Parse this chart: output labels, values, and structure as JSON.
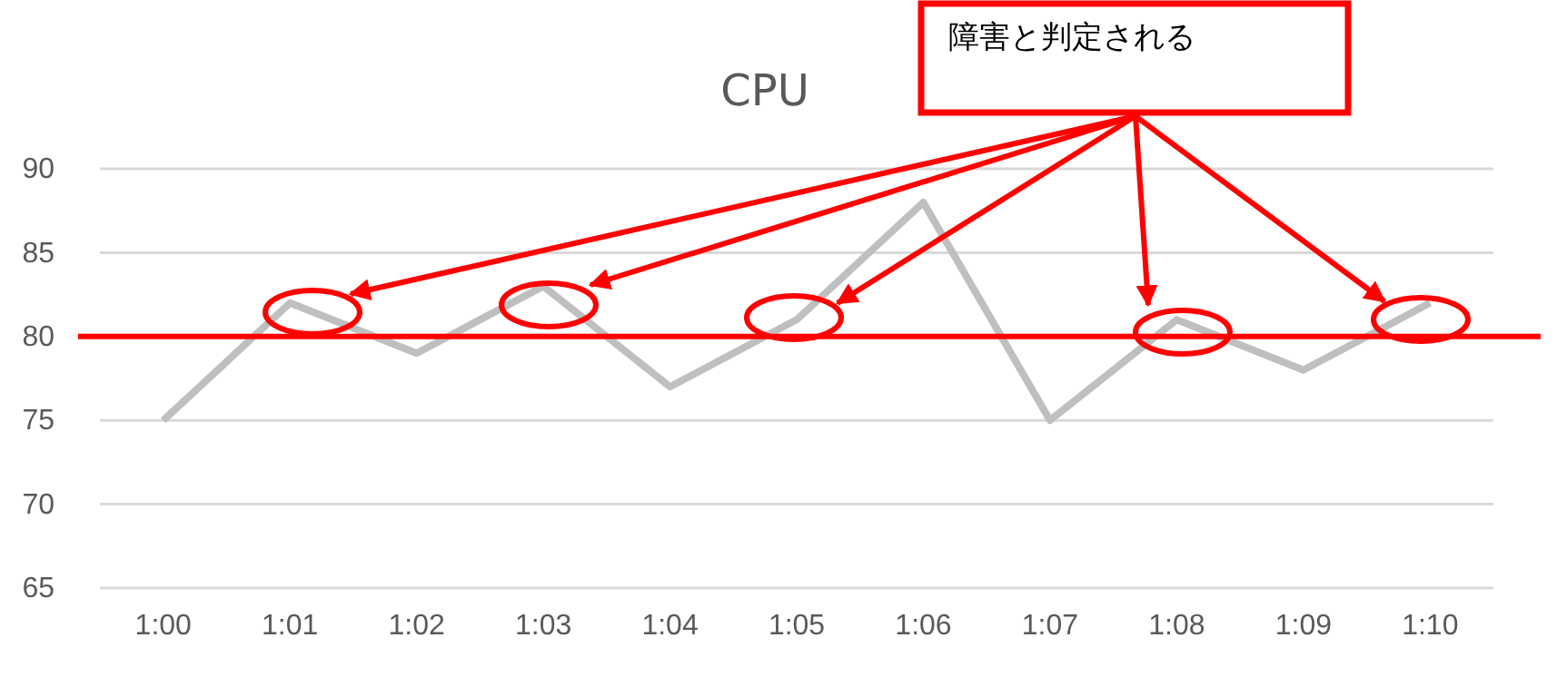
{
  "chart_data": {
    "type": "line",
    "title": "CPU",
    "categories": [
      "1:00",
      "1:01",
      "1:02",
      "1:03",
      "1:04",
      "1:05",
      "1:06",
      "1:07",
      "1:08",
      "1:09",
      "1:10"
    ],
    "series": [
      {
        "color": "#bfbfbf",
        "values": [
          75,
          82,
          79,
          83,
          77,
          81,
          88,
          75,
          81,
          78,
          82
        ]
      }
    ],
    "ylim": [
      65,
      90
    ],
    "yticks": [
      65,
      70,
      75,
      80,
      85,
      90
    ],
    "grid": "y",
    "marker": "none",
    "line_style": "solid",
    "ref_lines": [
      {
        "axis": "y",
        "value": 80,
        "color": "#ff0000",
        "line_style": "solid"
      }
    ],
    "annotations": [
      "障害と判定される"
    ]
  }
}
